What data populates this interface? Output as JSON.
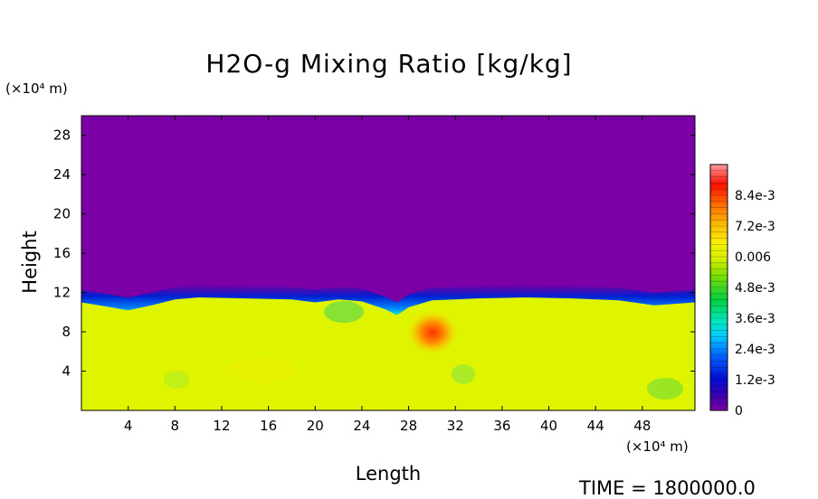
{
  "chart_data": {
    "type": "heatmap",
    "title": "H2O-g Mixing Ratio [kg/kg]",
    "xlabel": "Length",
    "ylabel": "Height",
    "x_unit": "(×10⁴ m)",
    "y_unit": "(×10⁴ m)",
    "xlim": [
      0,
      52.5
    ],
    "ylim": [
      0,
      30
    ],
    "xticks": [
      "4",
      "8",
      "12",
      "16",
      "20",
      "24",
      "28",
      "32",
      "36",
      "40",
      "44",
      "48"
    ],
    "yticks": [
      "4",
      "8",
      "12",
      "16",
      "20",
      "24",
      "28"
    ],
    "xtick_values": [
      4,
      8,
      12,
      16,
      20,
      24,
      28,
      32,
      36,
      40,
      44,
      48
    ],
    "ytick_values": [
      4,
      8,
      12,
      16,
      20,
      24,
      28
    ],
    "colorbar": {
      "labels": [
        "8.4e-3",
        "7.2e-3",
        "0.006",
        "4.8e-3",
        "3.6e-3",
        "2.4e-3",
        "1.2e-3",
        "0"
      ],
      "label_values": [
        0.0084,
        0.0072,
        0.006,
        0.0048,
        0.0036,
        0.0024,
        0.0012,
        0
      ],
      "range": [
        0,
        0.0096
      ]
    },
    "boundary_height": [
      [
        0,
        11.0
      ],
      [
        2.5,
        10.5
      ],
      [
        4,
        10.2
      ],
      [
        6,
        10.7
      ],
      [
        8,
        11.3
      ],
      [
        10,
        11.5
      ],
      [
        14,
        11.4
      ],
      [
        18,
        11.3
      ],
      [
        20,
        11.0
      ],
      [
        22,
        11.3
      ],
      [
        24,
        11.1
      ],
      [
        26,
        10.3
      ],
      [
        27,
        9.7
      ],
      [
        28,
        10.5
      ],
      [
        30,
        11.2
      ],
      [
        34,
        11.4
      ],
      [
        38,
        11.5
      ],
      [
        42,
        11.4
      ],
      [
        46,
        11.2
      ],
      [
        49,
        10.7
      ],
      [
        52.5,
        11.0
      ]
    ],
    "background_value": 0.0,
    "lower_layer_value": 0.0052,
    "max_region": {
      "x_range": [
        27,
        32
      ],
      "height_range": [
        6,
        10
      ],
      "max_value": 0.0082
    },
    "time_text": "TIME = 1800000.0"
  }
}
